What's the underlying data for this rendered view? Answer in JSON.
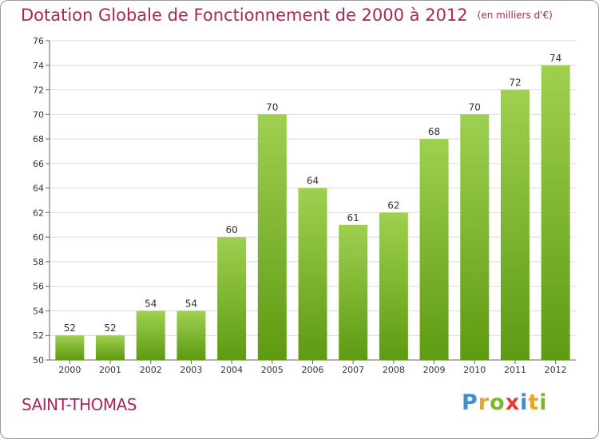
{
  "title": "Dotation Globale de Fonctionnement de 2000 à 2012",
  "unit_note": "(en milliers d'€)",
  "commune": "SAINT-THOMAS",
  "brand": {
    "letters": [
      "P",
      "r",
      "o",
      "x",
      "i",
      "t",
      "i"
    ],
    "colors": [
      "#3a8fd6",
      "#f0a21c",
      "#7cb82f",
      "#e23b3b",
      "#3a8fd6",
      "#f0a21c",
      "#7cb82f"
    ]
  },
  "colors": {
    "title": "#b0245a",
    "bar_top": "#9fd050",
    "bar_bottom": "#5e9a12",
    "grid": "#d9d9d9"
  },
  "chart_data": {
    "type": "bar",
    "categories": [
      "2000",
      "2001",
      "2002",
      "2003",
      "2004",
      "2005",
      "2006",
      "2007",
      "2008",
      "2009",
      "2010",
      "2011",
      "2012"
    ],
    "values": [
      52,
      52,
      54,
      54,
      60,
      70,
      64,
      61,
      62,
      68,
      70,
      72,
      74
    ],
    "ylim": [
      50,
      76
    ],
    "yticks": [
      50,
      52,
      54,
      56,
      58,
      60,
      62,
      64,
      66,
      68,
      70,
      72,
      74,
      76
    ],
    "grid": true
  }
}
